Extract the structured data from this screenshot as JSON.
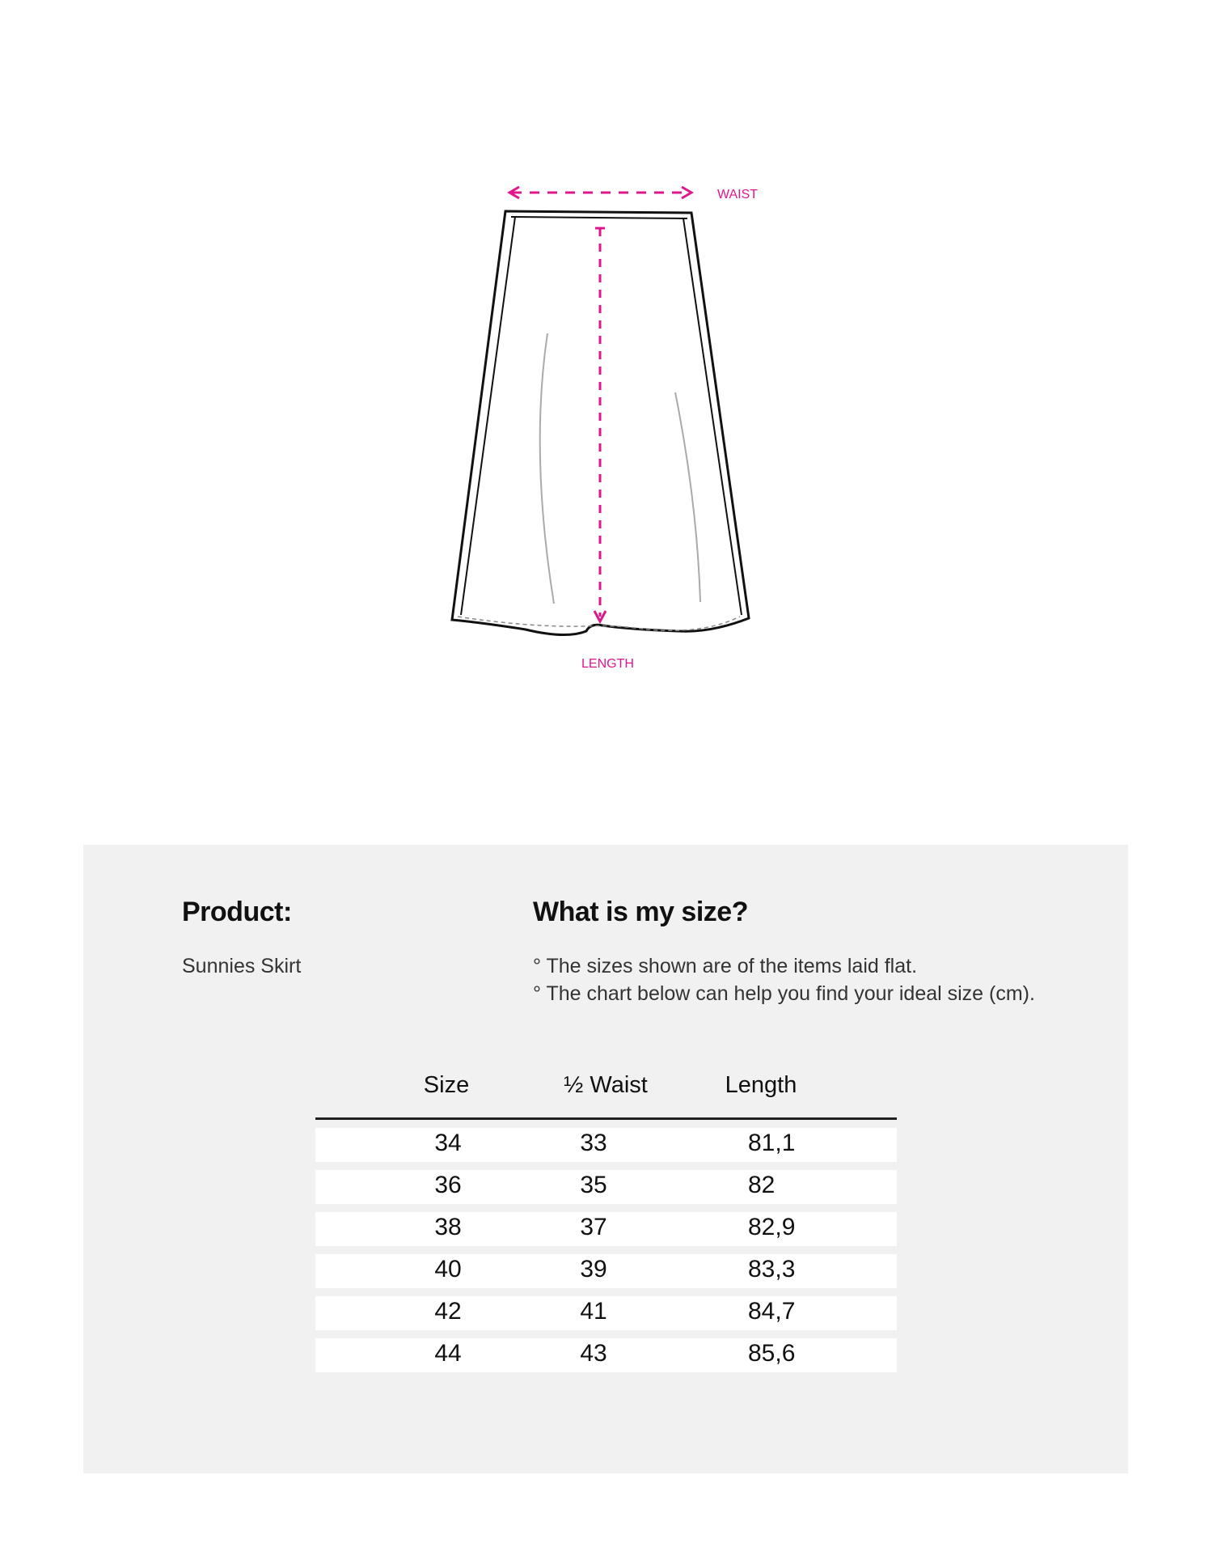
{
  "diagram": {
    "waist_label": "WAIST",
    "length_label": "LENGTH",
    "accent_color": "#e0178c"
  },
  "product": {
    "heading": "Product:",
    "name": "Sunnies Skirt"
  },
  "size_info": {
    "heading": "What is my size?",
    "notes": [
      "° The sizes shown are of the items laid flat.",
      "° The chart below can help you find your ideal size (cm)."
    ]
  },
  "table": {
    "headers": [
      "Size",
      "½ Waist",
      "Length"
    ],
    "rows": [
      [
        "34",
        "33",
        "81,1"
      ],
      [
        "36",
        "35",
        "82"
      ],
      [
        "38",
        "37",
        "82,9"
      ],
      [
        "40",
        "39",
        "83,3"
      ],
      [
        "42",
        "41",
        "84,7"
      ],
      [
        "44",
        "43",
        "85,6"
      ]
    ]
  }
}
